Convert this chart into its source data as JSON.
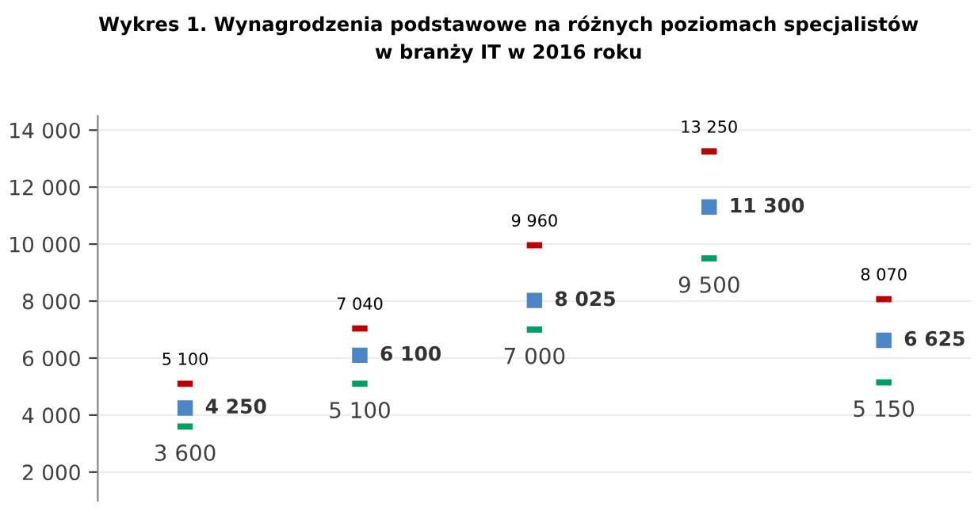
{
  "chart_data": {
    "type": "scatter",
    "title": "Wykres 1. Wynagrodzenia podstawowe na różnych poziomach specjalistów\nw branży IT w 2016 roku",
    "categories": [
      null,
      null,
      null,
      null,
      null
    ],
    "series": [
      {
        "color": "#c00000",
        "values": [
          5100,
          7040,
          9960,
          13250,
          8070
        ]
      },
      {
        "color": "#4a86c8",
        "marker": "square",
        "values": [
          4250,
          6100,
          8025,
          11300,
          6625
        ]
      },
      {
        "color": "#00a060",
        "values": [
          3600,
          5100,
          7000,
          9500,
          5150
        ]
      }
    ],
    "data_labels": true,
    "ylim": [
      1000,
      14500
    ],
    "yticks": [
      {
        "value": 2000,
        "label": "2 000"
      },
      {
        "value": 4000,
        "label": "4 000"
      },
      {
        "value": 6000,
        "label": "6 000"
      },
      {
        "value": 8000,
        "label": "8 000"
      },
      {
        "value": 10000,
        "label": "10 000"
      },
      {
        "value": 12000,
        "label": "12 000"
      },
      {
        "value": 14000,
        "label": "14 000"
      }
    ],
    "grid": "y",
    "tick_labels": "y",
    "legend": false
  }
}
